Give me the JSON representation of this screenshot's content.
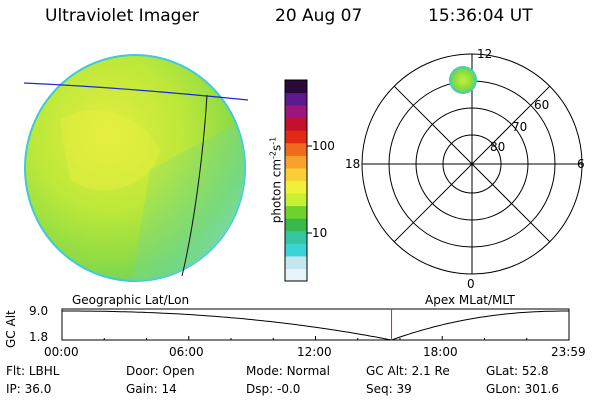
{
  "header": {
    "instrument": "Ultraviolet Imager",
    "date": "20 Aug 07",
    "time": "15:36:04 UT"
  },
  "colorbar": {
    "label": "photon cm-2s-1",
    "label_main": "photon cm",
    "sup1": "-2",
    "mid": "s",
    "sup2": "-1",
    "tick_labels": [
      "100",
      "10"
    ],
    "colors": [
      "#e6f3f7",
      "#c4e6ee",
      "#3cd3d6",
      "#35c5a3",
      "#38b84a",
      "#6fd12e",
      "#c7f030",
      "#f0ef3a",
      "#f8d036",
      "#f7a22c",
      "#ef6a1c",
      "#e02a14",
      "#c4102d",
      "#9b167b",
      "#5b1a8e",
      "#2a0a3a"
    ]
  },
  "polar_plot": {
    "lat_labels": [
      "60",
      "70",
      "80"
    ],
    "mlt_labels": {
      "top": "12",
      "left": "18",
      "right": "6",
      "bottom": "0"
    }
  },
  "map_labels": {
    "left": "Geographic Lat/Lon",
    "right": "Apex MLat/MLT"
  },
  "gc_plot": {
    "ylabel": "GC Alt",
    "y_ticks": [
      "9.0",
      "1.8"
    ],
    "x_ticks": [
      "00:00",
      "06:00",
      "12:00",
      "18:00",
      "23:59"
    ],
    "current_time_hours": 15.6
  },
  "info": {
    "filter": {
      "label": "Flt:",
      "value": "LBHL"
    },
    "ip": {
      "label": "IP:",
      "value": "36.0"
    },
    "door": {
      "label": "Door:",
      "value": "Open"
    },
    "gain": {
      "label": "Gain:",
      "value": "14"
    },
    "mode": {
      "label": "Mode:",
      "value": "Normal"
    },
    "dsp": {
      "label": "Dsp:",
      "value": "-0.0"
    },
    "gc_alt": {
      "label": "GC Alt:",
      "value": "2.1 Re"
    },
    "seq": {
      "label": "Seq:",
      "value": "39"
    },
    "glat": {
      "label": "GLat:",
      "value": "52.8"
    },
    "glon": {
      "label": "GLon:",
      "value": "301.6"
    }
  }
}
